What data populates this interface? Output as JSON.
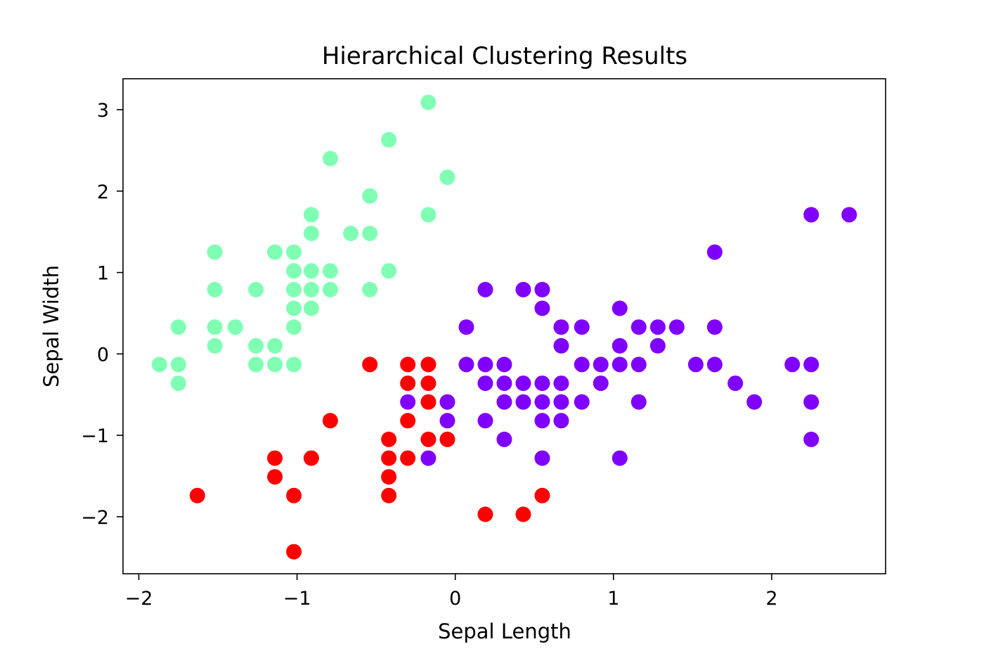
{
  "chart_data": {
    "type": "scatter",
    "title": "Hierarchical Clustering Results",
    "xlabel": "Sepal Length",
    "ylabel": "Sepal Width",
    "xlim": [
      -2.1,
      2.72
    ],
    "ylim": [
      -2.7,
      3.38
    ],
    "xticks": [
      -2,
      -1,
      0,
      1,
      2
    ],
    "xtick_labels": [
      "−2",
      "−1",
      "0",
      "1",
      "2"
    ],
    "yticks": [
      -2,
      -1,
      0,
      1,
      2,
      3
    ],
    "ytick_labels": [
      "−2",
      "−1",
      "0",
      "1",
      "2",
      "3"
    ],
    "grid": false,
    "legend": false,
    "series": [
      {
        "color": "#80ffb4",
        "points": [
          [
            -0.17,
            3.09
          ],
          [
            -0.42,
            2.63
          ],
          [
            -0.79,
            2.4
          ],
          [
            -0.05,
            2.17
          ],
          [
            -0.54,
            1.94
          ],
          [
            -0.91,
            1.71
          ],
          [
            -0.17,
            1.71
          ],
          [
            -0.91,
            1.48
          ],
          [
            -0.66,
            1.48
          ],
          [
            -0.54,
            1.48
          ],
          [
            -1.52,
            1.25
          ],
          [
            -1.14,
            1.25
          ],
          [
            -1.02,
            1.25
          ],
          [
            -1.02,
            1.02
          ],
          [
            -0.91,
            1.02
          ],
          [
            -0.79,
            1.02
          ],
          [
            -0.42,
            1.02
          ],
          [
            -1.52,
            0.79
          ],
          [
            -1.26,
            0.79
          ],
          [
            -1.02,
            0.79
          ],
          [
            -0.91,
            0.79
          ],
          [
            -0.79,
            0.79
          ],
          [
            -0.54,
            0.79
          ],
          [
            -1.02,
            0.56
          ],
          [
            -0.91,
            0.56
          ],
          [
            -1.75,
            0.33
          ],
          [
            -1.52,
            0.33
          ],
          [
            -1.39,
            0.33
          ],
          [
            -1.02,
            0.33
          ],
          [
            -1.52,
            0.1
          ],
          [
            -1.26,
            0.1
          ],
          [
            -1.14,
            0.1
          ],
          [
            -1.87,
            -0.13
          ],
          [
            -1.75,
            -0.13
          ],
          [
            -1.26,
            -0.13
          ],
          [
            -1.14,
            -0.13
          ],
          [
            -1.02,
            -0.13
          ],
          [
            -1.75,
            -0.36
          ]
        ]
      },
      {
        "color": "#ff0000",
        "points": [
          [
            -0.54,
            -0.13
          ],
          [
            -0.3,
            -0.13
          ],
          [
            -0.17,
            -0.13
          ],
          [
            -0.3,
            -0.36
          ],
          [
            -0.17,
            -0.36
          ],
          [
            -0.17,
            -0.59
          ],
          [
            -0.79,
            -0.82
          ],
          [
            -0.3,
            -0.82
          ],
          [
            -0.42,
            -1.05
          ],
          [
            -0.17,
            -1.05
          ],
          [
            -0.05,
            -1.05
          ],
          [
            -1.14,
            -1.28
          ],
          [
            -0.91,
            -1.28
          ],
          [
            -0.42,
            -1.28
          ],
          [
            -0.3,
            -1.28
          ],
          [
            -1.14,
            -1.51
          ],
          [
            -0.42,
            -1.51
          ],
          [
            -1.63,
            -1.74
          ],
          [
            -1.02,
            -1.74
          ],
          [
            -0.42,
            -1.74
          ],
          [
            0.55,
            -1.74
          ],
          [
            0.19,
            -1.97
          ],
          [
            0.43,
            -1.97
          ],
          [
            -1.02,
            -2.43
          ]
        ]
      },
      {
        "color": "#8000ff",
        "points": [
          [
            2.25,
            1.71
          ],
          [
            2.49,
            1.71
          ],
          [
            1.64,
            1.25
          ],
          [
            0.19,
            0.79
          ],
          [
            0.43,
            0.79
          ],
          [
            0.55,
            0.79
          ],
          [
            0.55,
            0.56
          ],
          [
            1.04,
            0.56
          ],
          [
            0.07,
            0.33
          ],
          [
            0.67,
            0.33
          ],
          [
            0.8,
            0.33
          ],
          [
            1.16,
            0.33
          ],
          [
            1.28,
            0.33
          ],
          [
            1.4,
            0.33
          ],
          [
            1.64,
            0.33
          ],
          [
            0.67,
            0.1
          ],
          [
            1.04,
            0.1
          ],
          [
            1.28,
            0.1
          ],
          [
            0.07,
            -0.13
          ],
          [
            0.19,
            -0.13
          ],
          [
            0.31,
            -0.13
          ],
          [
            0.8,
            -0.13
          ],
          [
            0.92,
            -0.13
          ],
          [
            1.04,
            -0.13
          ],
          [
            1.16,
            -0.13
          ],
          [
            1.52,
            -0.13
          ],
          [
            1.64,
            -0.13
          ],
          [
            2.13,
            -0.13
          ],
          [
            2.25,
            -0.13
          ],
          [
            0.19,
            -0.36
          ],
          [
            0.31,
            -0.36
          ],
          [
            0.43,
            -0.36
          ],
          [
            0.55,
            -0.36
          ],
          [
            0.67,
            -0.36
          ],
          [
            0.92,
            -0.36
          ],
          [
            1.77,
            -0.36
          ],
          [
            -0.3,
            -0.59
          ],
          [
            -0.05,
            -0.59
          ],
          [
            0.31,
            -0.59
          ],
          [
            0.43,
            -0.59
          ],
          [
            0.55,
            -0.59
          ],
          [
            0.67,
            -0.59
          ],
          [
            0.8,
            -0.59
          ],
          [
            1.16,
            -0.59
          ],
          [
            1.89,
            -0.59
          ],
          [
            2.25,
            -0.59
          ],
          [
            -0.05,
            -0.82
          ],
          [
            0.19,
            -0.82
          ],
          [
            0.55,
            -0.82
          ],
          [
            0.67,
            -0.82
          ],
          [
            0.31,
            -1.05
          ],
          [
            2.25,
            -1.05
          ],
          [
            -0.17,
            -1.28
          ],
          [
            0.55,
            -1.28
          ],
          [
            1.04,
            -1.28
          ]
        ]
      }
    ]
  }
}
